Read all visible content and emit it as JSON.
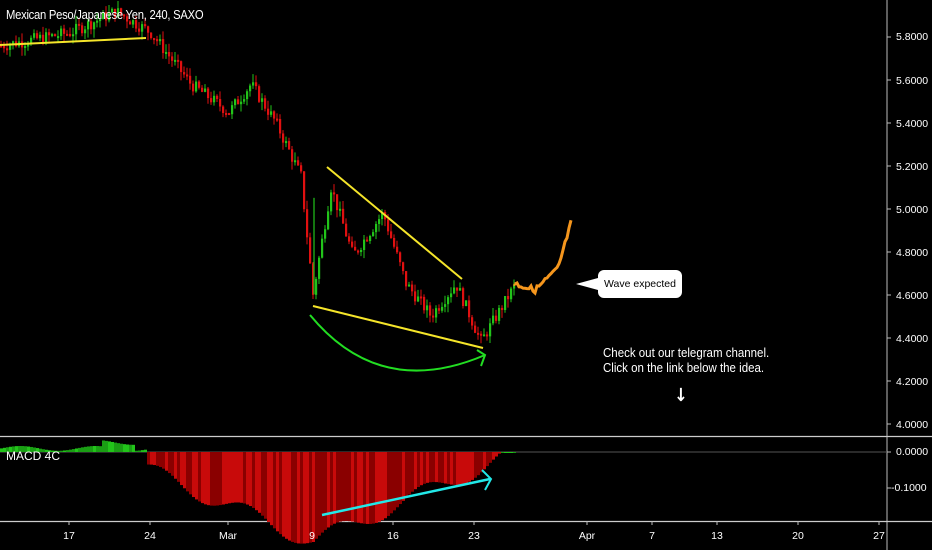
{
  "header": {
    "title": "Mexican Peso/Japanese Yen, 240, SAXO"
  },
  "price_axis": {
    "labels": [
      "5.8000",
      "5.6000",
      "5.4000",
      "5.2000",
      "5.0000",
      "4.8000",
      "4.6000",
      "4.4000",
      "4.2000",
      "4.0000"
    ]
  },
  "macd": {
    "label": "MACD 4C",
    "axis_labels": [
      "0.0000",
      "-0.1000"
    ]
  },
  "time_axis": {
    "labels": [
      "17",
      "24",
      "Mar",
      "9",
      "16",
      "23",
      "Apr",
      "7",
      "13",
      "20",
      "27"
    ]
  },
  "annotations": {
    "callout": "Wave expected",
    "note_line1": "Check out our telegram channel.",
    "note_line2": "Click on the link below the idea.",
    "arrow": "↓"
  },
  "colors": {
    "up": "#22c41a",
    "down": "#e01010",
    "trendline": "#f5e52a",
    "arc": "#22dd22",
    "projection": "#f5961d",
    "divergence": "#22e8e8",
    "background": "#000000"
  },
  "chart_data": {
    "type": "candlestick",
    "title": "Mexican Peso/Japanese Yen, 240, SAXO",
    "timeframe": "240",
    "source": "SAXO",
    "x_ticks": [
      "17",
      "24",
      "Mar",
      "9",
      "16",
      "23",
      "Apr",
      "7",
      "13",
      "20",
      "27"
    ],
    "y_ticks": [
      5.8,
      5.6,
      5.4,
      5.2,
      5.0,
      4.8,
      4.6,
      4.4,
      4.2,
      4.0
    ],
    "ylim": [
      3.95,
      5.95
    ],
    "approx_path": [
      {
        "date": "Feb 10",
        "price": 5.76
      },
      {
        "date": "Feb 17",
        "price": 5.82
      },
      {
        "date": "Feb 21",
        "price": 5.92
      },
      {
        "date": "Feb 24",
        "price": 5.82
      },
      {
        "date": "Feb 27",
        "price": 5.58
      },
      {
        "date": "Mar 2",
        "price": 5.45
      },
      {
        "date": "Mar 4",
        "price": 5.58
      },
      {
        "date": "Mar 6",
        "price": 5.4
      },
      {
        "date": "Mar 8",
        "price": 5.15
      },
      {
        "date": "Mar 9",
        "price": 4.6
      },
      {
        "date": "Mar 11",
        "price": 5.1
      },
      {
        "date": "Mar 13",
        "price": 4.78
      },
      {
        "date": "Mar 16",
        "price": 4.98
      },
      {
        "date": "Mar 18",
        "price": 4.65
      },
      {
        "date": "Mar 20",
        "price": 4.5
      },
      {
        "date": "Mar 22",
        "price": 4.65
      },
      {
        "date": "Mar 24",
        "price": 4.38
      },
      {
        "date": "Mar 26",
        "price": 4.65
      }
    ],
    "projection": [
      {
        "date": "Mar 26",
        "price": 4.65
      },
      {
        "date": "Mar 28",
        "price": 4.62
      },
      {
        "date": "Mar 30",
        "price": 4.72
      },
      {
        "date": "Mar 31",
        "price": 4.95
      }
    ],
    "macd": {
      "label": "MACD 4C",
      "ylim": [
        -0.16,
        0.02
      ],
      "min": -0.15,
      "min_date": "Mar 9",
      "last": 0.0
    },
    "drawings": [
      "falling wedge (yellow trendlines)",
      "green rounded-bottom arc arrow",
      "orange projected wave",
      "cyan MACD bullish divergence arrow",
      "yellow trendline top-left"
    ]
  }
}
